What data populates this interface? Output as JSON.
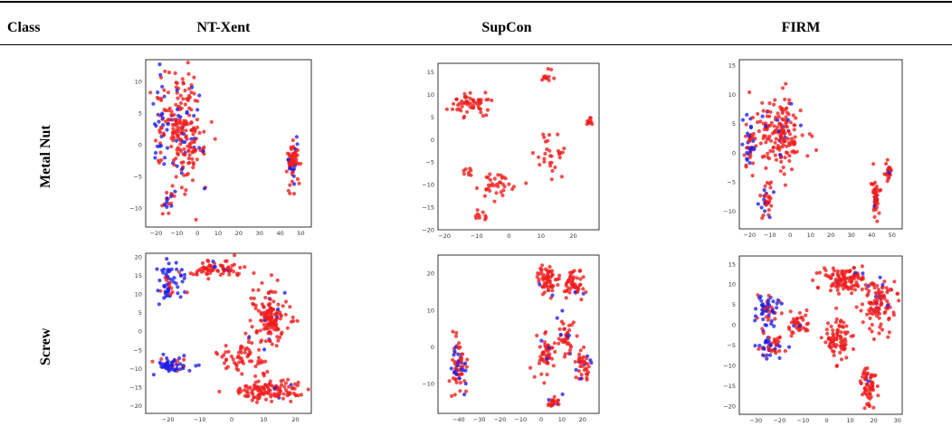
{
  "table": {
    "headers": {
      "class": "Class",
      "methods": [
        "NT-Xent",
        "SupCon",
        "FIRM"
      ]
    },
    "rows": [
      "Metal Nut",
      "Screw"
    ]
  },
  "colors": {
    "normal": "#ee1c1c",
    "anomaly": "#1f1fe8",
    "frame": "#000000"
  },
  "chart_data": [
    {
      "type": "scatter",
      "panel": "Metal Nut / NT-Xent",
      "xlim": [
        -25,
        55
      ],
      "ylim": [
        -13,
        13.5
      ],
      "xticks": [
        "−20",
        "−10",
        "0",
        "10",
        "20",
        "30",
        "40",
        "50"
      ],
      "xtick_vals": [
        -20,
        -10,
        0,
        10,
        20,
        30,
        40,
        50
      ],
      "yticks": [
        "10",
        "5",
        "0",
        "−5",
        "−10"
      ],
      "ytick_vals": [
        10,
        5,
        0,
        -5,
        -10
      ],
      "clusters": [
        {
          "cx": -7,
          "cy": 2,
          "rx": 10,
          "ry": 9,
          "n": 210,
          "anomaly": 0.14
        },
        {
          "cx": -18,
          "cy": 4,
          "rx": 3,
          "ry": 8,
          "n": 40,
          "anomaly": 0.55
        },
        {
          "cx": -13,
          "cy": -9,
          "rx": 4,
          "ry": 2.5,
          "n": 20,
          "anomaly": 0.45
        },
        {
          "cx": 46,
          "cy": -2.5,
          "rx": 3,
          "ry": 4,
          "n": 70,
          "anomaly": 0.15
        }
      ]
    },
    {
      "type": "scatter",
      "panel": "Metal Nut / SupCon",
      "xlim": [
        -22,
        28
      ],
      "ylim": [
        -20,
        17
      ],
      "xticks": [
        "−20",
        "−10",
        "0",
        "10",
        "20"
      ],
      "xtick_vals": [
        -20,
        -10,
        0,
        10,
        20
      ],
      "yticks": [
        "15",
        "10",
        "5",
        "0",
        "−5",
        "−10",
        "−15",
        "−20"
      ],
      "ytick_vals": [
        15,
        10,
        5,
        0,
        -5,
        -10,
        -15,
        -20
      ],
      "clusters": [
        {
          "cx": -12,
          "cy": 8,
          "rx": 8,
          "ry": 3,
          "n": 55,
          "anomaly": 0
        },
        {
          "cx": 12,
          "cy": 14,
          "rx": 1.5,
          "ry": 1.5,
          "n": 12,
          "anomaly": 0
        },
        {
          "cx": 25,
          "cy": 4,
          "rx": 1,
          "ry": 0.8,
          "n": 10,
          "anomaly": 0
        },
        {
          "cx": 13,
          "cy": -4,
          "rx": 5,
          "ry": 5,
          "n": 30,
          "anomaly": 0
        },
        {
          "cx": -3,
          "cy": -10,
          "rx": 7,
          "ry": 3,
          "n": 35,
          "anomaly": 0
        },
        {
          "cx": -13,
          "cy": -7,
          "rx": 2,
          "ry": 1,
          "n": 8,
          "anomaly": 0
        },
        {
          "cx": -9,
          "cy": -17,
          "rx": 1.5,
          "ry": 1.5,
          "n": 10,
          "anomaly": 0
        }
      ]
    },
    {
      "type": "scatter",
      "panel": "Metal Nut / FIRM",
      "xlim": [
        -25,
        55
      ],
      "ylim": [
        -13,
        16
      ],
      "xticks": [
        "−20",
        "−10",
        "0",
        "10",
        "20",
        "30",
        "40",
        "50"
      ],
      "xtick_vals": [
        -20,
        -10,
        0,
        10,
        20,
        30,
        40,
        50
      ],
      "yticks": [
        "15",
        "10",
        "5",
        "0",
        "−5",
        "−10"
      ],
      "ytick_vals": [
        15,
        10,
        5,
        0,
        -5,
        -10
      ],
      "clusters": [
        {
          "cx": -5,
          "cy": 3,
          "rx": 12,
          "ry": 6,
          "n": 170,
          "anomaly": 0.08
        },
        {
          "cx": -20,
          "cy": 2,
          "rx": 3,
          "ry": 5,
          "n": 45,
          "anomaly": 0.55
        },
        {
          "cx": -12,
          "cy": -8,
          "rx": 4,
          "ry": 3,
          "n": 35,
          "anomaly": 0.25
        },
        {
          "cx": 42,
          "cy": -8,
          "rx": 2,
          "ry": 4,
          "n": 45,
          "anomaly": 0.15
        },
        {
          "cx": 48,
          "cy": -3,
          "rx": 1.5,
          "ry": 2,
          "n": 20,
          "anomaly": 0.05
        }
      ]
    },
    {
      "type": "scatter",
      "panel": "Screw / NT-Xent",
      "xlim": [
        -27,
        25
      ],
      "ylim": [
        -22,
        21
      ],
      "xticks": [
        "−20",
        "−10",
        "0",
        "10",
        "20"
      ],
      "xtick_vals": [
        -20,
        -10,
        0,
        10,
        20
      ],
      "yticks": [
        "20",
        "15",
        "10",
        "5",
        "0",
        "−5",
        "−10",
        "−15",
        "−20"
      ],
      "ytick_vals": [
        20,
        15,
        10,
        5,
        0,
        -5,
        -10,
        -15,
        -20
      ],
      "clusters": [
        {
          "cx": -19,
          "cy": 13,
          "rx": 5,
          "ry": 5,
          "n": 60,
          "anomaly": 0.85
        },
        {
          "cx": -19,
          "cy": -9,
          "rx": 6,
          "ry": 2.5,
          "n": 60,
          "anomaly": 0.85
        },
        {
          "cx": -4,
          "cy": 17,
          "rx": 9,
          "ry": 2.5,
          "n": 70,
          "anomaly": 0.05
        },
        {
          "cx": 12,
          "cy": 4,
          "rx": 6,
          "ry": 8,
          "n": 140,
          "anomaly": 0.04
        },
        {
          "cx": 4,
          "cy": -7,
          "rx": 8,
          "ry": 4,
          "n": 60,
          "anomaly": 0.03
        },
        {
          "cx": 12,
          "cy": -16,
          "rx": 10,
          "ry": 3,
          "n": 120,
          "anomaly": 0.03
        }
      ]
    },
    {
      "type": "scatter",
      "panel": "Screw / SupCon",
      "xlim": [
        -50,
        28
      ],
      "ylim": [
        -18,
        25
      ],
      "xticks": [
        "−40",
        "−30",
        "−20",
        "−10",
        "0",
        "10",
        "20"
      ],
      "xtick_vals": [
        -40,
        -30,
        -20,
        -10,
        0,
        10,
        20
      ],
      "yticks": [
        "20",
        "10",
        "0",
        "−10"
      ],
      "ytick_vals": [
        20,
        10,
        0,
        -10
      ],
      "clusters": [
        {
          "cx": -40,
          "cy": -5,
          "rx": 4,
          "ry": 8,
          "n": 70,
          "anomaly": 0.3
        },
        {
          "cx": 3,
          "cy": 18,
          "rx": 5,
          "ry": 4,
          "n": 60,
          "anomaly": 0.05
        },
        {
          "cx": 16,
          "cy": 17,
          "rx": 5,
          "ry": 4,
          "n": 50,
          "anomaly": 0.05
        },
        {
          "cx": 2,
          "cy": -1,
          "rx": 4,
          "ry": 6,
          "n": 50,
          "anomaly": 0.1
        },
        {
          "cx": 12,
          "cy": 2,
          "rx": 4,
          "ry": 6,
          "n": 40,
          "anomaly": 0.12
        },
        {
          "cx": 20,
          "cy": -5,
          "rx": 4,
          "ry": 5,
          "n": 40,
          "anomaly": 0.15
        },
        {
          "cx": 6,
          "cy": -15,
          "rx": 3,
          "ry": 1.5,
          "n": 20,
          "anomaly": 0.3
        }
      ]
    },
    {
      "type": "scatter",
      "panel": "Screw / FIRM",
      "xlim": [
        -37,
        32
      ],
      "ylim": [
        -22,
        17
      ],
      "xticks": [
        "−30",
        "−20",
        "−10",
        "0",
        "10",
        "20",
        "30"
      ],
      "xtick_vals": [
        -30,
        -20,
        -10,
        0,
        10,
        20,
        30
      ],
      "yticks": [
        "15",
        "10",
        "5",
        "0",
        "−5",
        "−10",
        "−15",
        "−20"
      ],
      "ytick_vals": [
        15,
        10,
        5,
        0,
        -5,
        -10,
        -15,
        -20
      ],
      "clusters": [
        {
          "cx": -25,
          "cy": 3,
          "rx": 6,
          "ry": 4,
          "n": 60,
          "anomaly": 0.75
        },
        {
          "cx": -24,
          "cy": -5,
          "rx": 6,
          "ry": 3,
          "n": 50,
          "anomaly": 0.6
        },
        {
          "cx": -12,
          "cy": 0,
          "rx": 5,
          "ry": 3,
          "n": 40,
          "anomaly": 0.15
        },
        {
          "cx": 8,
          "cy": 11,
          "rx": 10,
          "ry": 3,
          "n": 110,
          "anomaly": 0.03
        },
        {
          "cx": 22,
          "cy": 5,
          "rx": 7,
          "ry": 6,
          "n": 100,
          "anomaly": 0.04
        },
        {
          "cx": 5,
          "cy": -3,
          "rx": 6,
          "ry": 6,
          "n": 80,
          "anomaly": 0.03
        },
        {
          "cx": 18,
          "cy": -15,
          "rx": 3,
          "ry": 5,
          "n": 60,
          "anomaly": 0.03
        }
      ]
    }
  ]
}
